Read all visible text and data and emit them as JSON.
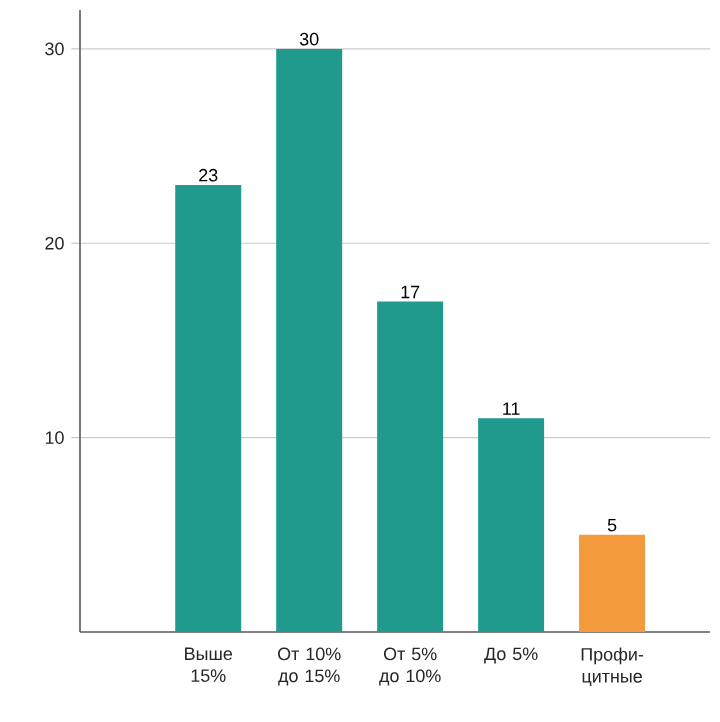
{
  "chart_data": {
    "type": "bar",
    "categories": [
      "Выше 15%",
      "От 10% до 15%",
      "От 5% до 10%",
      "До 5%",
      "Профи-цитные"
    ],
    "values": [
      23,
      30,
      17,
      11,
      5
    ],
    "colors": [
      "#1f9a8c",
      "#1f9a8c",
      "#1f9a8c",
      "#1f9a8c",
      "#f39a3c"
    ],
    "ylim": [
      0,
      32
    ],
    "yticks": [
      10,
      20,
      30
    ],
    "grid": "y",
    "data_labels": true
  }
}
